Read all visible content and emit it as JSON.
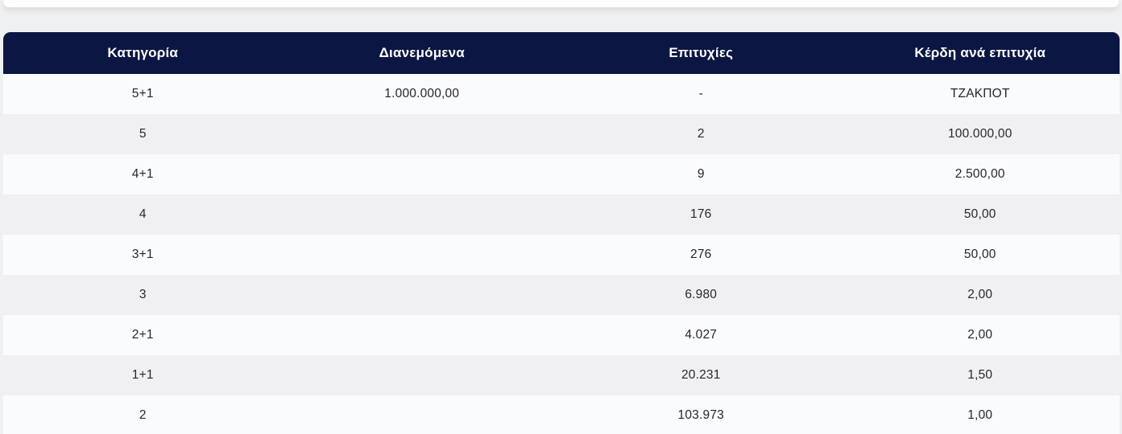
{
  "colors": {
    "page_background": "#eff0f2",
    "header_background": "#0c1642",
    "header_text": "#ffffff",
    "row_background": "#fafbfd",
    "row_alt_background": "#f0f0f3",
    "cell_text": "#26262e"
  },
  "table": {
    "columns": [
      {
        "label": "Κατηγορία"
      },
      {
        "label": "Διανεμόμενα"
      },
      {
        "label": "Επιτυχίες"
      },
      {
        "label": "Κέρδη ανά επιτυχία"
      }
    ],
    "rows": [
      {
        "category": "5+1",
        "distributed": "1.000.000,00",
        "winners": "-",
        "prize_per_winner": "ΤΖΑΚΠΟΤ"
      },
      {
        "category": "5",
        "distributed": "",
        "winners": "2",
        "prize_per_winner": "100.000,00"
      },
      {
        "category": "4+1",
        "distributed": "",
        "winners": "9",
        "prize_per_winner": "2.500,00"
      },
      {
        "category": "4",
        "distributed": "",
        "winners": "176",
        "prize_per_winner": "50,00"
      },
      {
        "category": "3+1",
        "distributed": "",
        "winners": "276",
        "prize_per_winner": "50,00"
      },
      {
        "category": "3",
        "distributed": "",
        "winners": "6.980",
        "prize_per_winner": "2,00"
      },
      {
        "category": "2+1",
        "distributed": "",
        "winners": "4.027",
        "prize_per_winner": "2,00"
      },
      {
        "category": "1+1",
        "distributed": "",
        "winners": "20.231",
        "prize_per_winner": "1,50"
      },
      {
        "category": "2",
        "distributed": "",
        "winners": "103.973",
        "prize_per_winner": "1,00"
      }
    ]
  }
}
